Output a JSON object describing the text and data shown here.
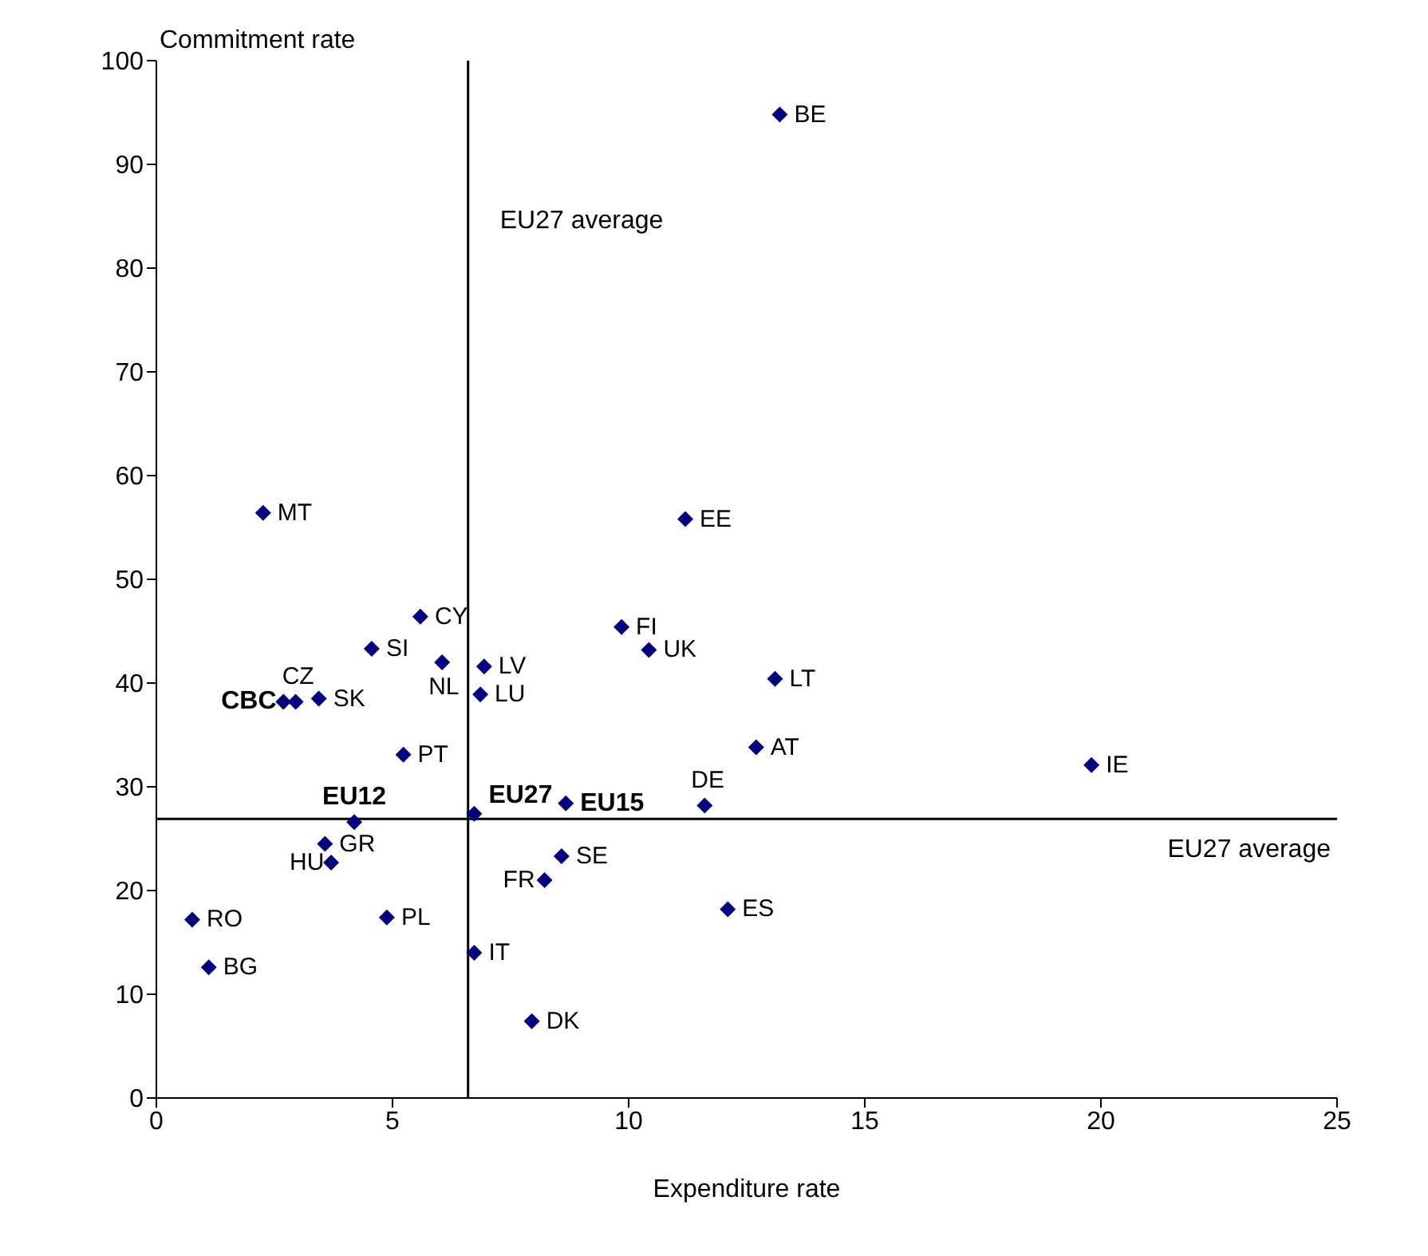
{
  "chart_data": {
    "type": "scatter",
    "xlabel": "Expenditure rate",
    "ylabel": "Commitment rate",
    "xlim": [
      0,
      25
    ],
    "xticks": [
      0,
      5,
      10,
      15,
      20,
      25
    ],
    "ylim": [
      0,
      100
    ],
    "yticks": [
      0,
      10,
      20,
      30,
      40,
      50,
      60,
      70,
      80,
      90,
      100
    ],
    "marker": "diamond",
    "series": [
      {
        "color": "#000080",
        "x": [
          13.2,
          2.26,
          11.2,
          5.59,
          9.85,
          10.43,
          4.56,
          6.05,
          6.94,
          2.95,
          3.44,
          6.86,
          5.23,
          13.1,
          12.7,
          19.8,
          11.61,
          3.57,
          3.7,
          8.58,
          8.22,
          0.76,
          1.11,
          4.88,
          12.1,
          6.73,
          7.95
        ],
        "values": [
          94.8,
          56.4,
          55.8,
          46.4,
          45.4,
          43.2,
          43.3,
          42.0,
          41.6,
          38.2,
          38.5,
          38.9,
          33.1,
          40.4,
          33.8,
          32.1,
          28.2,
          24.5,
          22.7,
          23.3,
          21.0,
          17.2,
          12.6,
          17.4,
          18.2,
          14.0,
          7.4
        ]
      },
      {
        "color": "#000080",
        "x": [
          2.69,
          4.19,
          6.73,
          8.67
        ],
        "values": [
          38.2,
          26.6,
          27.4,
          28.4
        ]
      }
    ],
    "annotations": [
      {
        "text": "BE",
        "x": 13.2,
        "y": 94.8
      },
      {
        "text": "MT",
        "x": 2.26,
        "y": 56.4
      },
      {
        "text": "EE",
        "x": 11.2,
        "y": 55.8
      },
      {
        "text": "CY",
        "x": 5.59,
        "y": 46.4
      },
      {
        "text": "FI",
        "x": 9.85,
        "y": 45.4
      },
      {
        "text": "UK",
        "x": 10.43,
        "y": 43.2
      },
      {
        "text": "SI",
        "x": 4.56,
        "y": 43.3
      },
      {
        "text": "NL",
        "x": 6.05,
        "y": 42.0
      },
      {
        "text": "LV",
        "x": 6.94,
        "y": 41.6
      },
      {
        "text": "CZ",
        "x": 2.95,
        "y": 38.2
      },
      {
        "text": "SK",
        "x": 3.44,
        "y": 38.5
      },
      {
        "text": "LU",
        "x": 6.86,
        "y": 38.9
      },
      {
        "text": "PT",
        "x": 5.23,
        "y": 33.1
      },
      {
        "text": "LT",
        "x": 13.1,
        "y": 40.4
      },
      {
        "text": "AT",
        "x": 12.7,
        "y": 33.8
      },
      {
        "text": "IE",
        "x": 19.8,
        "y": 32.1
      },
      {
        "text": "DE",
        "x": 11.61,
        "y": 28.2
      },
      {
        "text": "GR",
        "x": 3.57,
        "y": 24.5
      },
      {
        "text": "HU",
        "x": 3.7,
        "y": 22.7
      },
      {
        "text": "SE",
        "x": 8.58,
        "y": 23.3
      },
      {
        "text": "FR",
        "x": 8.22,
        "y": 21.0
      },
      {
        "text": "RO",
        "x": 0.76,
        "y": 17.2
      },
      {
        "text": "BG",
        "x": 1.11,
        "y": 12.6
      },
      {
        "text": "PL",
        "x": 4.88,
        "y": 17.4
      },
      {
        "text": "ES",
        "x": 12.1,
        "y": 18.2
      },
      {
        "text": "IT",
        "x": 6.73,
        "y": 14.0
      },
      {
        "text": "DK",
        "x": 7.95,
        "y": 7.4
      },
      {
        "text": "CBC",
        "x": 2.69,
        "y": 38.2
      },
      {
        "text": "EU12",
        "x": 4.19,
        "y": 26.6
      },
      {
        "text": "EU27",
        "x": 6.73,
        "y": 27.4
      },
      {
        "text": "EU15",
        "x": 8.67,
        "y": 28.4
      }
    ],
    "ref_lines": [
      {
        "axis": "x",
        "value": 6.6,
        "label": "EU27 average",
        "color": "#000000"
      },
      {
        "axis": "y",
        "value": 26.9,
        "label": "EU27 average",
        "color": "#000000"
      }
    ]
  }
}
